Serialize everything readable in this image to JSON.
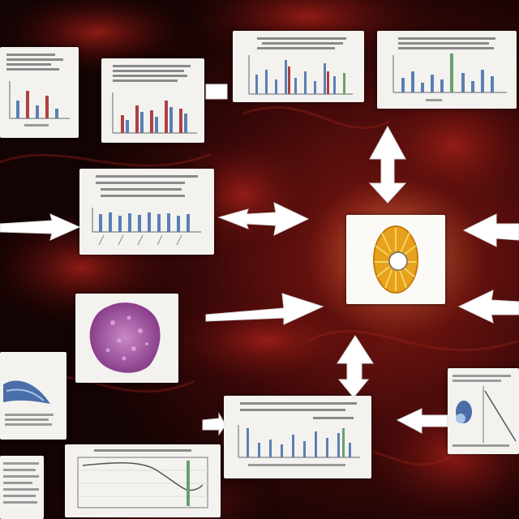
{
  "scene": {
    "colors": {
      "background_dark": "#1a0505",
      "tissue_red": "#7a0f0f",
      "card_bg": "#f3f2ef",
      "bar_blue": "#5b7fb5",
      "bar_red": "#b04040",
      "bar_green": "#6aa06a",
      "arrow": "#ffffff",
      "center_glow": "#ffd68a",
      "cell_orange": "#e7a11d",
      "cell_purple": "#b069b0"
    },
    "center_node": {
      "icon": "radial-cell-icon"
    },
    "cards": [
      {
        "id": "top-left-chart",
        "type": "bar-figure"
      },
      {
        "id": "top-mid-chart",
        "type": "bar-figure"
      },
      {
        "id": "top-center-chart",
        "type": "bar-figure"
      },
      {
        "id": "top-right-chart",
        "type": "bar-figure"
      },
      {
        "id": "mid-left-chart",
        "type": "bar-figure"
      },
      {
        "id": "purple-cell-image",
        "type": "micrograph"
      },
      {
        "id": "left-blue-shape",
        "type": "illustration"
      },
      {
        "id": "bottom-center-chart",
        "type": "bar-figure"
      },
      {
        "id": "bottom-left-line-chart",
        "type": "line-figure"
      },
      {
        "id": "bottom-right-chart",
        "type": "illustration"
      },
      {
        "id": "bottom-far-left-doc",
        "type": "document"
      }
    ],
    "arrows": [
      {
        "id": "arrow-left-in",
        "direction": "right"
      },
      {
        "id": "arrow-mid-to-center",
        "direction": "double-horizontal"
      },
      {
        "id": "arrow-lower-to-center",
        "direction": "right"
      },
      {
        "id": "arrow-top-vertical",
        "direction": "double-vertical"
      },
      {
        "id": "arrow-bottom-vertical",
        "direction": "double-vertical"
      },
      {
        "id": "arrow-right-upper",
        "direction": "left"
      },
      {
        "id": "arrow-right-lower",
        "direction": "left"
      },
      {
        "id": "arrow-bottom-right",
        "direction": "left"
      },
      {
        "id": "arrow-bottom-center-in",
        "direction": "right"
      },
      {
        "id": "arrow-top-mid-out",
        "direction": "right"
      }
    ]
  }
}
